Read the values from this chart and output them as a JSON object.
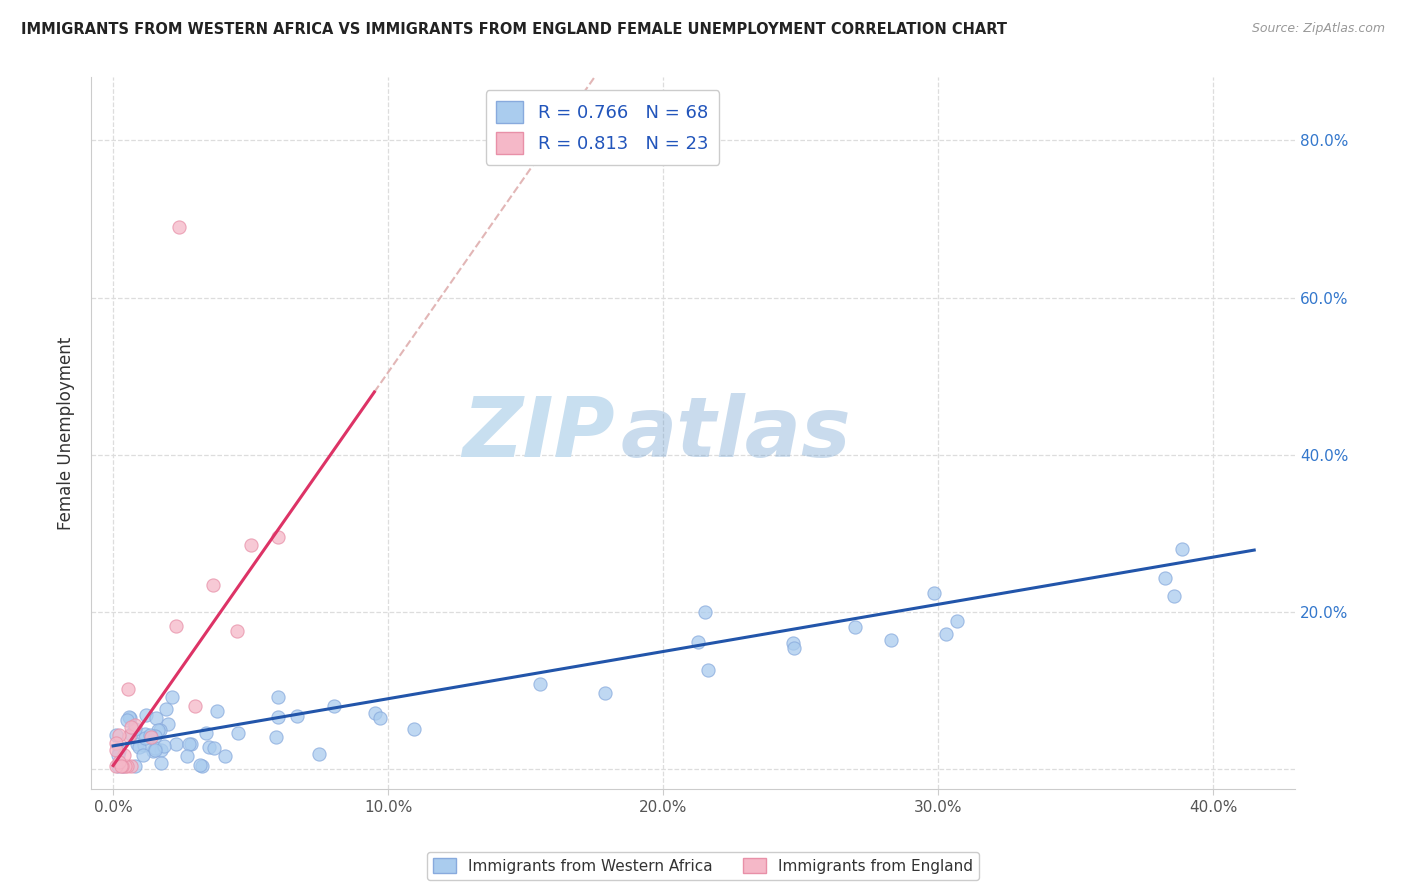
{
  "title": "IMMIGRANTS FROM WESTERN AFRICA VS IMMIGRANTS FROM ENGLAND FEMALE UNEMPLOYMENT CORRELATION CHART",
  "source": "Source: ZipAtlas.com",
  "ylabel": "Female Unemployment",
  "x_tick_labels": [
    "0.0%",
    "10.0%",
    "20.0%",
    "30.0%",
    "40.0%"
  ],
  "x_tick_values": [
    0.0,
    0.1,
    0.2,
    0.3,
    0.4
  ],
  "y_tick_labels_right": [
    "80.0%",
    "60.0%",
    "40.0%",
    "20.0%"
  ],
  "y_tick_values_right": [
    0.8,
    0.6,
    0.4,
    0.2
  ],
  "xlim": [
    -0.008,
    0.43
  ],
  "ylim": [
    -0.025,
    0.88
  ],
  "R_blue": 0.766,
  "N_blue": 68,
  "R_pink": 0.813,
  "N_pink": 23,
  "legend_label_blue": "Immigrants from Western Africa",
  "legend_label_pink": "Immigrants from England",
  "blue_color": "#aaccee",
  "blue_edge_color": "#88aadd",
  "pink_color": "#f5b8c8",
  "pink_edge_color": "#e890a8",
  "trendline_blue_color": "#2255aa",
  "trendline_pink_color": "#dd3366",
  "trendline_pink_dashed_color": "#ddaaaa",
  "watermark_zip_color": "#c8dff0",
  "watermark_atlas_color": "#6699cc",
  "background_color": "#ffffff",
  "grid_color": "#dddddd"
}
